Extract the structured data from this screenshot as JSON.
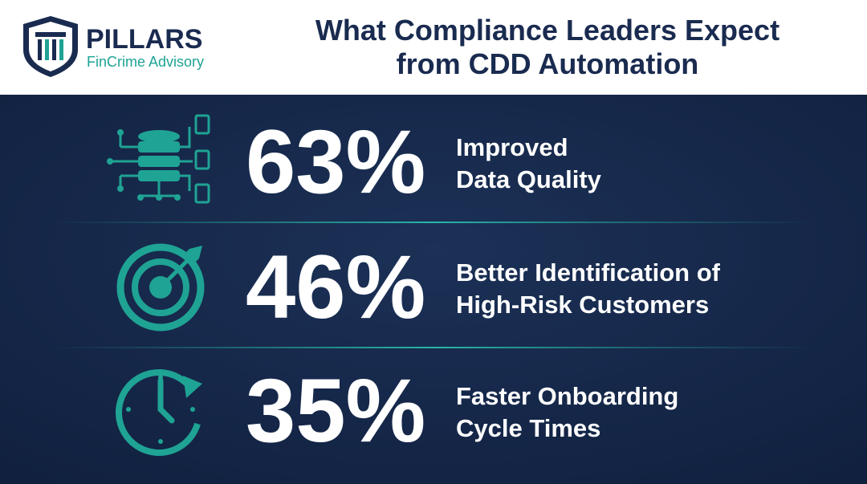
{
  "header": {
    "brand": "PILLARS",
    "tagline": "FinCrime Advisory",
    "title_lines": [
      "What Compliance Leaders Expect",
      "from CDD Automation"
    ]
  },
  "stats": [
    {
      "value": "63%",
      "label_lines": [
        "Improved",
        "Data Quality"
      ]
    },
    {
      "value": "46%",
      "label_lines": [
        "Better Identification of",
        "High-Risk Customers"
      ]
    },
    {
      "value": "35%",
      "label_lines": [
        "Faster Onboarding",
        "Cycle Times"
      ]
    }
  ]
}
